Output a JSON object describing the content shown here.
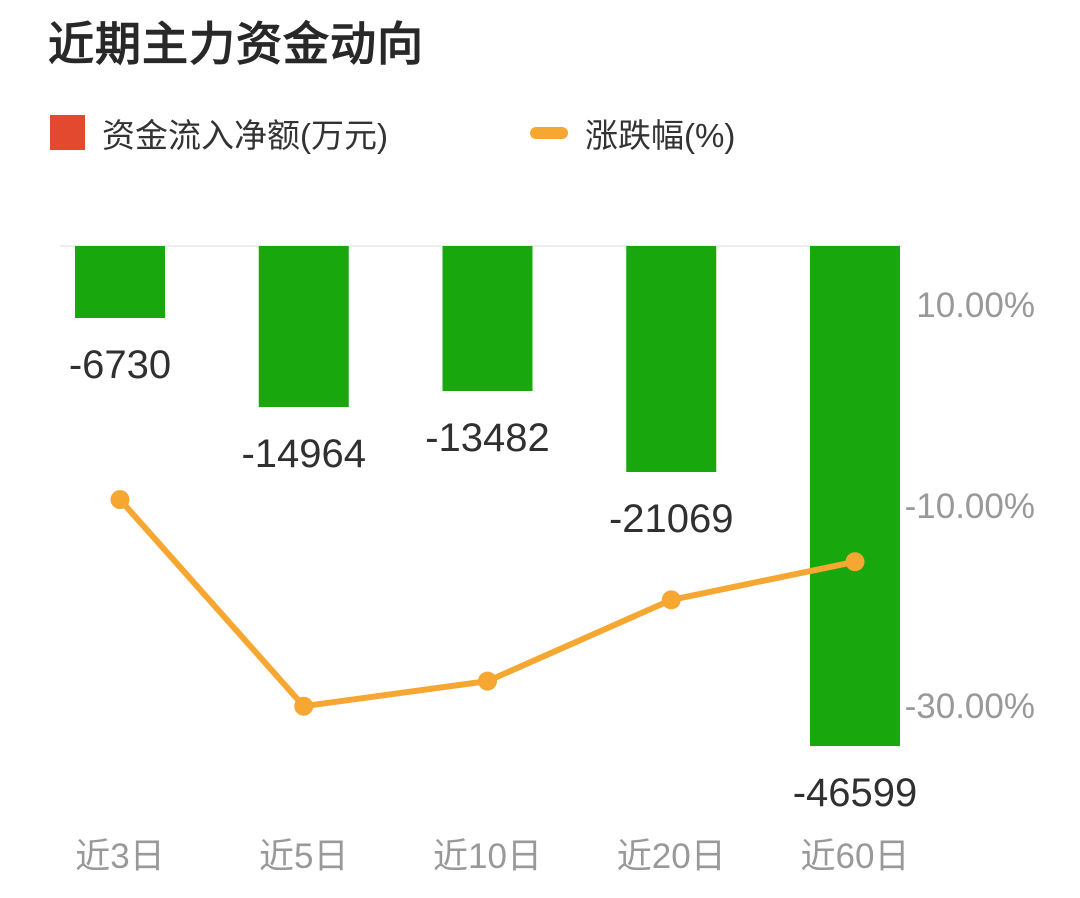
{
  "title": "近期主力资金动向",
  "legend": {
    "bar_label": "资金流入净额(万元)",
    "line_label": "涨跌幅(%)",
    "bar_swatch_color": "#E2492F",
    "line_swatch_color": "#F6A732"
  },
  "chart_data": {
    "type": "bar",
    "subtype": "bar+line dual axis combo",
    "categories": [
      "近3日",
      "近5日",
      "近10日",
      "近20日",
      "近60日"
    ],
    "series": [
      {
        "name": "资金流入净额(万元)",
        "type": "bar",
        "unit": "万元",
        "axis": "left",
        "color": "#18A80E",
        "values": [
          -6730,
          -14964,
          -13482,
          -21069,
          -46599
        ]
      },
      {
        "name": "涨跌幅(%)",
        "type": "line",
        "unit": "%",
        "axis": "right",
        "color": "#F6A732",
        "values": [
          -9.3,
          -29.9,
          -27.4,
          -19.3,
          -15.5
        ]
      }
    ],
    "bar_value_labels": [
      "-6730",
      "-14964",
      "-13482",
      "-21069",
      "-46599"
    ],
    "right_axis": {
      "position": "right",
      "tick_labels": [
        "10.00%",
        "-10.00%",
        "-30.00%"
      ],
      "tick_values": [
        10,
        -10,
        -30
      ]
    },
    "left_axis": {
      "tick_labels_visible": false,
      "zero_line": true
    },
    "grid": false,
    "legend_position": "top-left",
    "background": "#FFFFFF",
    "zero_line_color": "#ECECEC",
    "text_colors": {
      "title": "#282828",
      "legend": "#333333",
      "value_label": "#303030",
      "axis_label": "#999999"
    }
  }
}
